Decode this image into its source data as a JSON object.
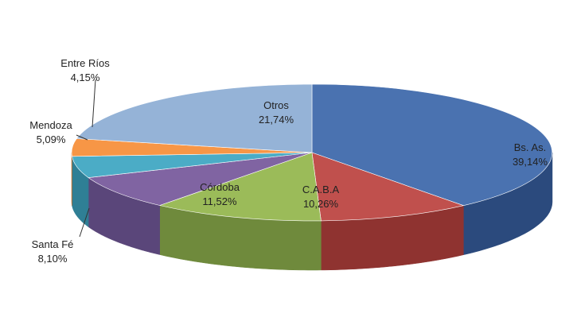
{
  "chart_data": {
    "type": "pie",
    "style": "3d-exploded-none",
    "start": "top, clockwise",
    "labels": [
      {
        "category": "Bs. As.",
        "value_text": "39,14%"
      },
      {
        "category": "C.A.B.A",
        "value_text": "10,26%"
      },
      {
        "category": "Córdoba",
        "value_text": "11,52%"
      },
      {
        "category": "Santa Fé",
        "value_text": "8,10%"
      },
      {
        "category": "Mendoza",
        "value_text": "5,09%"
      },
      {
        "category": "Entre Ríos",
        "value_text": "4,15%"
      },
      {
        "category": "Otros",
        "value_text": "21,74%"
      }
    ],
    "values": [
      39.14,
      10.26,
      11.52,
      8.1,
      5.09,
      4.15,
      21.74
    ],
    "colors": [
      "#4a72b0",
      "#c0504d",
      "#9bbb59",
      "#8064a2",
      "#4bacc6",
      "#f79646",
      "#95b3d7"
    ],
    "side_colors": [
      "#2b4a7d",
      "#8f3330",
      "#6f8a3c",
      "#5a467a",
      "#2f7f95",
      "#c06f2a",
      "#6d88ad"
    ]
  }
}
